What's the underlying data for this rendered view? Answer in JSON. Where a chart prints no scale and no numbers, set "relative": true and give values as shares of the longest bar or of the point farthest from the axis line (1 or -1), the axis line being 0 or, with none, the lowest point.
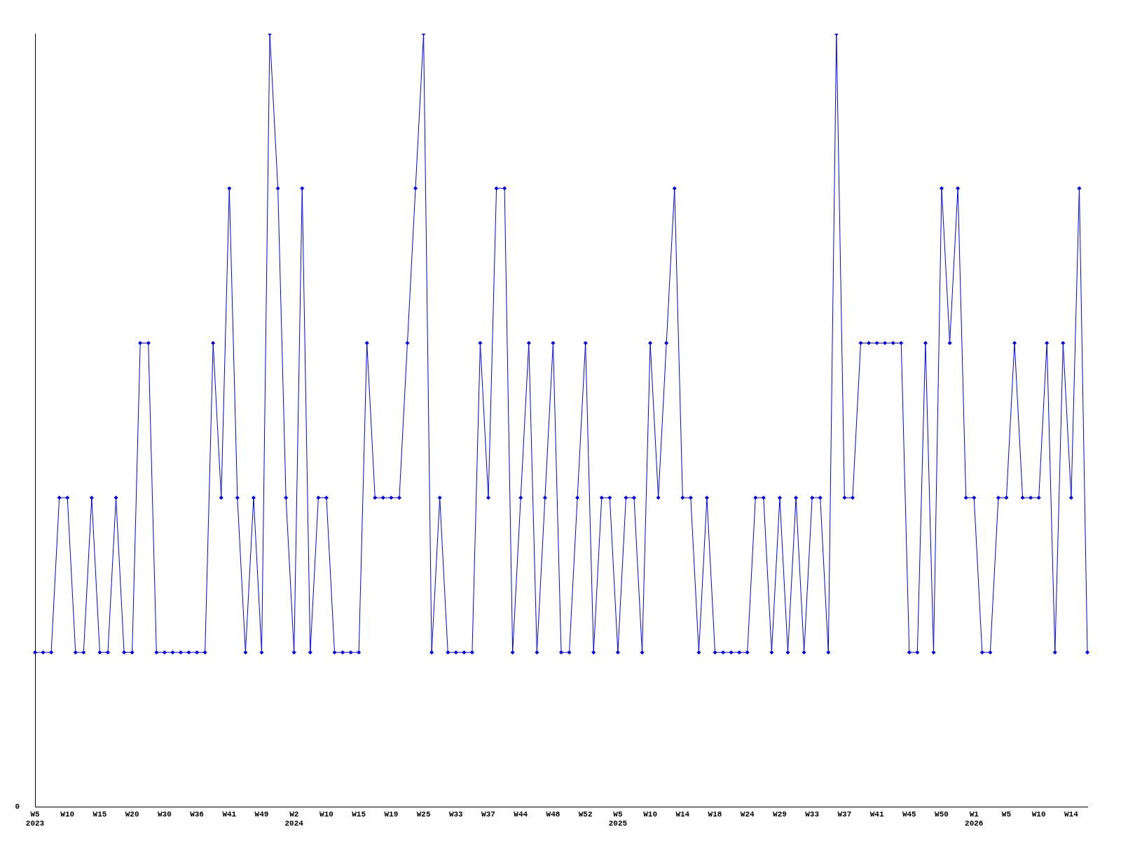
{
  "chart_data": {
    "type": "line",
    "relative": true,
    "annotations": [
      "0"
    ],
    "grid": false,
    "legend": false,
    "marker": "diamond",
    "line_style": "solid",
    "categories": [
      "W5\n2023",
      null,
      null,
      null,
      "W10",
      null,
      null,
      null,
      "W15",
      null,
      null,
      null,
      "W20",
      null,
      null,
      null,
      "W30",
      null,
      null,
      null,
      "W36",
      null,
      null,
      null,
      "W41",
      null,
      null,
      null,
      "W49",
      null,
      null,
      null,
      "W2\n2024",
      null,
      null,
      null,
      "W10",
      null,
      null,
      null,
      "W15",
      null,
      null,
      null,
      "W19",
      null,
      null,
      null,
      "W25",
      null,
      null,
      null,
      "W33",
      null,
      null,
      null,
      "W37",
      null,
      null,
      null,
      "W44",
      null,
      null,
      null,
      "W48",
      null,
      null,
      null,
      "W52",
      null,
      null,
      null,
      "W5\n2025",
      null,
      null,
      null,
      "W10",
      null,
      null,
      null,
      "W14",
      null,
      null,
      null,
      "W18",
      null,
      null,
      null,
      "W24",
      null,
      null,
      null,
      "W29",
      null,
      null,
      null,
      "W33",
      null,
      null,
      null,
      "W37",
      null,
      null,
      null,
      "W41",
      null,
      null,
      null,
      "W45",
      null,
      null,
      null,
      "W50",
      null,
      null,
      null,
      "W1\n2026",
      null,
      null,
      null,
      "W5",
      null,
      null,
      null,
      "W10",
      null,
      null,
      null,
      "W14",
      null,
      null
    ],
    "series": [
      {
        "color": "#0000ff",
        "values": [
          0.2,
          0.2,
          0.2,
          0.4,
          0.4,
          0.2,
          0.2,
          0.4,
          0.2,
          0.2,
          0.4,
          0.2,
          0.2,
          0.6,
          0.6,
          0.2,
          0.2,
          0.2,
          0.2,
          0.2,
          0.2,
          0.2,
          0.6,
          0.4,
          0.8,
          0.4,
          0.2,
          0.4,
          0.2,
          1,
          0.8,
          0.4,
          0.2,
          0.8,
          0.2,
          0.4,
          0.4,
          0.2,
          0.2,
          0.2,
          0.2,
          0.6,
          0.4,
          0.4,
          0.4,
          0.4,
          0.6,
          0.8,
          1,
          0.2,
          0.4,
          0.2,
          0.2,
          0.2,
          0.2,
          0.6,
          0.4,
          0.8,
          0.8,
          0.2,
          0.4,
          0.6,
          0.2,
          0.4,
          0.6,
          0.2,
          0.2,
          0.4,
          0.6,
          0.2,
          0.4,
          0.4,
          0.2,
          0.4,
          0.4,
          0.2,
          0.6,
          0.4,
          0.6,
          0.8,
          0.4,
          0.4,
          0.2,
          0.4,
          0.2,
          0.2,
          0.2,
          0.2,
          0.2,
          0.4,
          0.4,
          0.2,
          0.4,
          0.2,
          0.4,
          0.2,
          0.4,
          0.4,
          0.2,
          1,
          0.4,
          0.4,
          0.6,
          0.6,
          0.6,
          0.6,
          0.6,
          0.6,
          0.2,
          0.2,
          0.6,
          0.2,
          0.8,
          0.6,
          0.8,
          0.4,
          0.4,
          0.2,
          0.2,
          0.4,
          0.4,
          0.6,
          0.4,
          0.4,
          0.4,
          0.6,
          0.2,
          0.6,
          0.4,
          0.8,
          0.2
        ]
      }
    ]
  }
}
